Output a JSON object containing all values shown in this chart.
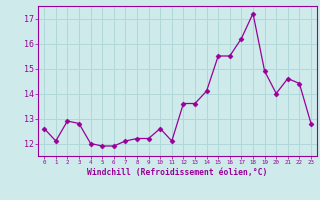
{
  "x": [
    0,
    1,
    2,
    3,
    4,
    5,
    6,
    7,
    8,
    9,
    10,
    11,
    12,
    13,
    14,
    15,
    16,
    17,
    18,
    19,
    20,
    21,
    22,
    23
  ],
  "y": [
    12.6,
    12.1,
    12.9,
    12.8,
    12.0,
    11.9,
    11.9,
    12.1,
    12.2,
    12.2,
    12.6,
    12.1,
    13.6,
    13.6,
    14.1,
    15.5,
    15.5,
    16.2,
    17.2,
    14.9,
    14.0,
    14.6,
    14.4,
    12.8
  ],
  "line_color": "#990099",
  "marker": "D",
  "marker_size": 2.5,
  "bg_color": "#ceeaea",
  "grid_color": "#b0d8d8",
  "xlabel": "Windchill (Refroidissement éolien,°C)",
  "xlabel_color": "#990099",
  "tick_color": "#990099",
  "ylim": [
    11.5,
    17.5
  ],
  "xlim": [
    -0.5,
    23.5
  ],
  "yticks": [
    12,
    13,
    14,
    15,
    16,
    17
  ],
  "xticks": [
    0,
    1,
    2,
    3,
    4,
    5,
    6,
    7,
    8,
    9,
    10,
    11,
    12,
    13,
    14,
    15,
    16,
    17,
    18,
    19,
    20,
    21,
    22,
    23
  ],
  "xtick_labels": [
    "0",
    "1",
    "2",
    "3",
    "4",
    "5",
    "6",
    "7",
    "8",
    "9",
    "10",
    "11",
    "12",
    "13",
    "14",
    "15",
    "16",
    "17",
    "18",
    "19",
    "20",
    "21",
    "22",
    "23"
  ]
}
